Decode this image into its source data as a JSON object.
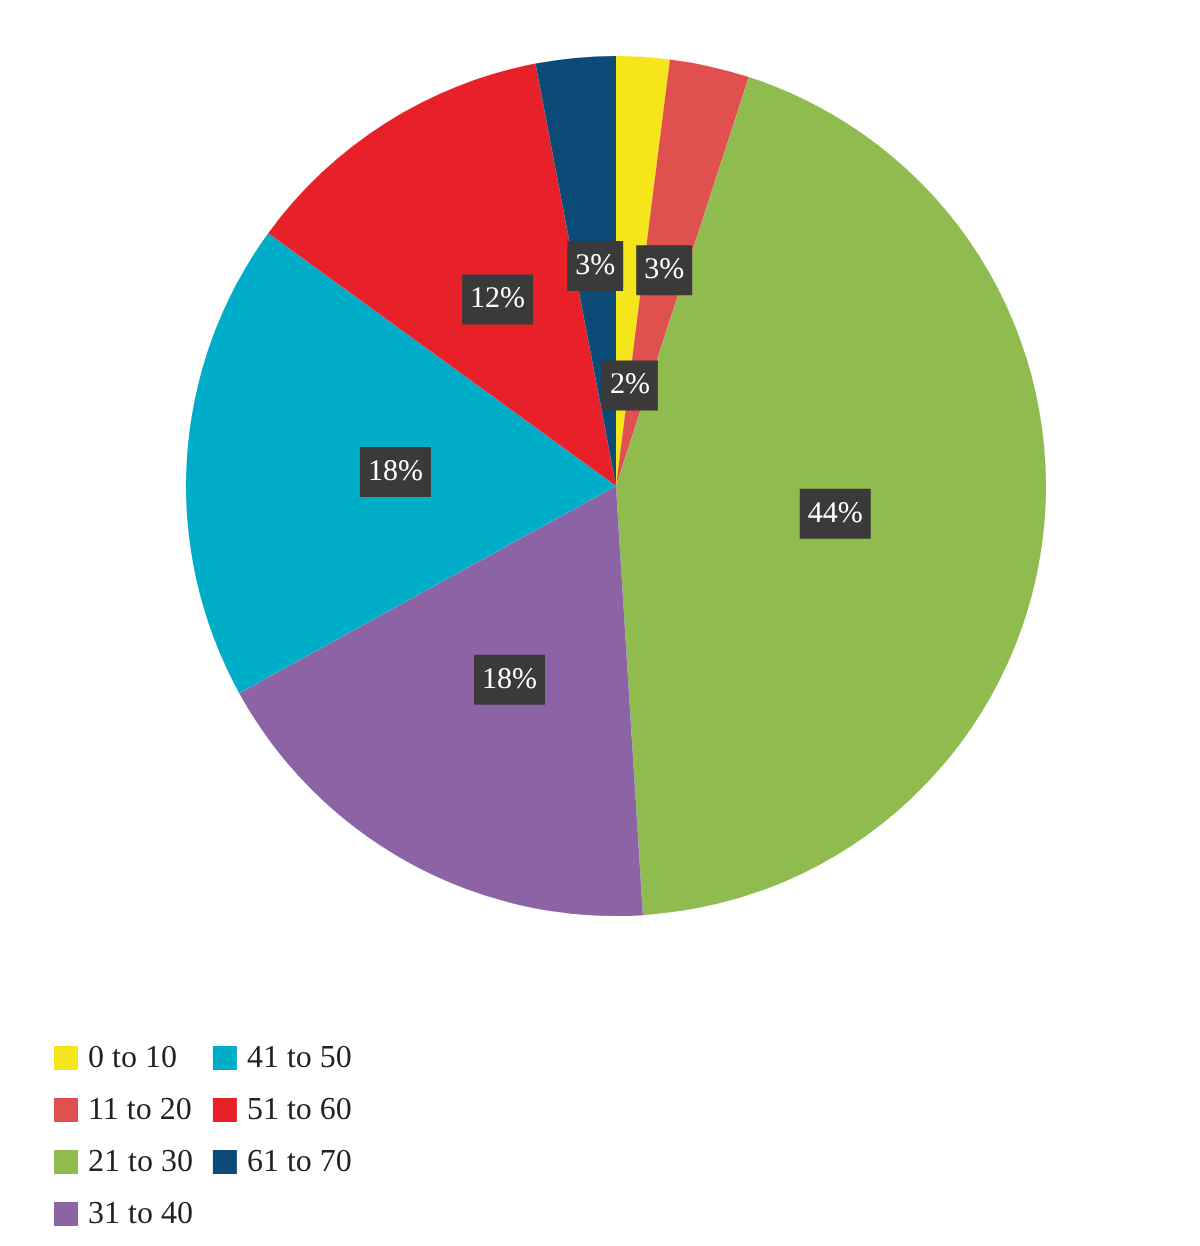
{
  "chart_data": {
    "type": "pie",
    "categories": [
      "0 to 10",
      "11 to 20",
      "21 to 30",
      "31 to 40",
      "41 to 50",
      "51 to 60",
      "61 to 70"
    ],
    "values": [
      2,
      3,
      44,
      18,
      18,
      12,
      3
    ],
    "colors": [
      "#f5e51b",
      "#e0504f",
      "#8fbb4f",
      "#8c64a6",
      "#00adc8",
      "#e8202a",
      "#0c4a78"
    ],
    "value_labels": [
      "2%",
      "3%",
      "44%",
      "18%",
      "18%",
      "12%",
      "3%"
    ],
    "legend": "bottom left"
  }
}
